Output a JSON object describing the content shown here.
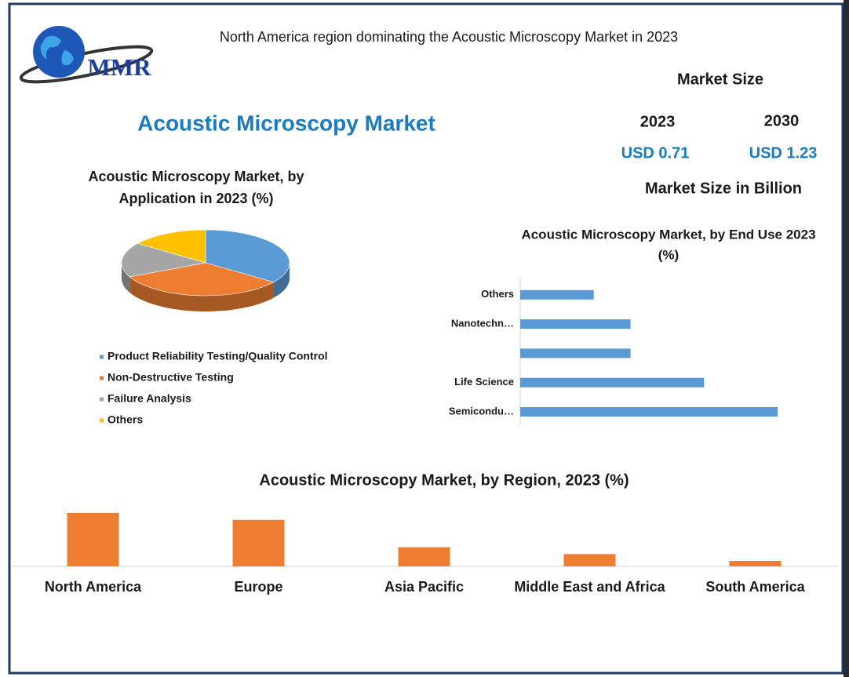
{
  "header": {
    "logo_text": "MMR",
    "subtitle": "North America region dominating the Acoustic Microscopy Market in 2023",
    "title": "Acoustic Microscopy Market"
  },
  "market_size": {
    "heading": "Market Size",
    "years": [
      "2023",
      "2030"
    ],
    "values": [
      "USD 0.71",
      "USD 1.23"
    ],
    "unit": "Market Size in Billion"
  },
  "chart_data": [
    {
      "type": "pie",
      "title": [
        "Acoustic Microscopy Market, by",
        "Application  in 2023 (%)"
      ],
      "categories": [
        "Product Reliability Testing/Quality Control",
        "Non-Destructive Testing",
        "Failure Analysis",
        "Others"
      ],
      "values": [
        35,
        33,
        17,
        15
      ],
      "colors": [
        "#5b9bd5",
        "#ed7d31",
        "#a5a5a5",
        "#ffc000"
      ]
    },
    {
      "type": "hbar",
      "title": [
        "Acoustic Microscopy Market, by End Use 2023",
        "(%)"
      ],
      "categories": [
        "Semicondu…",
        "Life Science",
        null,
        "Nanotechn…",
        "Others"
      ],
      "values": [
        35,
        25,
        15,
        15,
        10
      ],
      "color": "#5b9bd5"
    },
    {
      "type": "bar",
      "title": "Acoustic Microscopy Market, by Region, 2023 (%)",
      "categories": [
        "North America",
        "Europe",
        "Asia Pacific",
        "Middle East and Africa",
        "South America"
      ],
      "values": [
        39,
        34,
        14,
        9,
        4
      ],
      "color": "#ed7d31"
    }
  ]
}
